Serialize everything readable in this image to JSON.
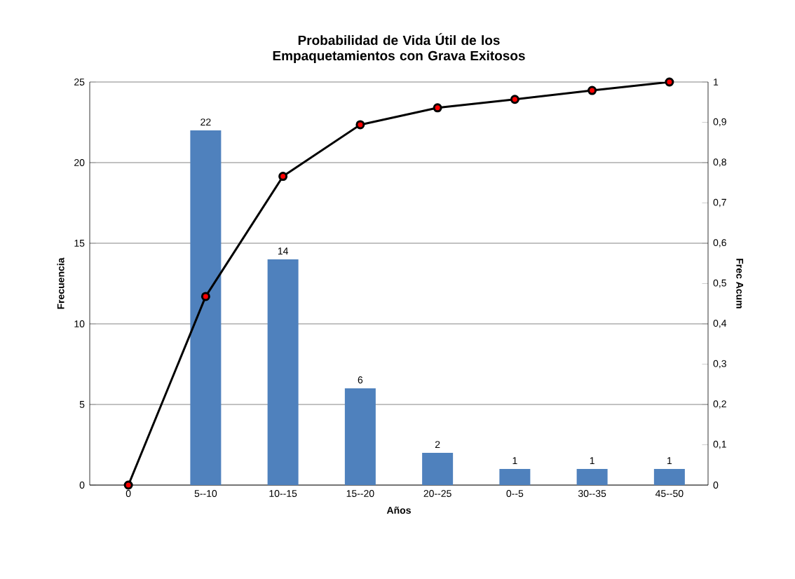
{
  "chart_data": {
    "type": "bar",
    "title": "Probabilidad de Vida Útil de los Empaquetamientos con Grava Exitosos",
    "xlabel": "Años",
    "ylabel": "Frecuencia",
    "y2label": "Frec Acum",
    "categories": [
      "0",
      "5--10",
      "10--15",
      "15--20",
      "20--25",
      "0--5",
      "30--35",
      "45--50"
    ],
    "series": [
      {
        "color": "#4f81bd",
        "values": [
          0,
          22,
          14,
          6,
          2,
          1,
          1,
          1
        ],
        "value_labels": [
          null,
          "22",
          "14",
          "6",
          "2",
          "1",
          "1",
          "1"
        ]
      },
      {
        "type": "line",
        "axis": "y2",
        "color": "#000000",
        "colors": [
          "#ff0000",
          "#ff0000",
          "#ff0000",
          "#ff0000",
          "#ff0000",
          "#ff0000",
          "#ff0000",
          "#ff0000"
        ],
        "marker": "circle",
        "values": [
          0,
          0.468,
          0.766,
          0.894,
          0.936,
          0.957,
          0.979,
          1
        ]
      }
    ],
    "ylim": [
      0,
      25
    ],
    "yticks": [
      0,
      5,
      10,
      15,
      20,
      25
    ],
    "y2lim": [
      0,
      1
    ],
    "y2ticks": [
      0,
      {
        "value": 0.1,
        "label": "0,1"
      },
      {
        "value": 0.2,
        "label": "0,2"
      },
      {
        "value": 0.3,
        "label": "0,3"
      },
      {
        "value": 0.4,
        "label": "0,4"
      },
      {
        "value": 0.5,
        "label": "0,5"
      },
      {
        "value": 0.6,
        "label": "0,6"
      },
      {
        "value": 0.7,
        "label": "0,7"
      },
      {
        "value": 0.8,
        "label": "0,8"
      },
      {
        "value": 0.9,
        "label": "0,9"
      },
      1
    ],
    "grid": "y"
  }
}
